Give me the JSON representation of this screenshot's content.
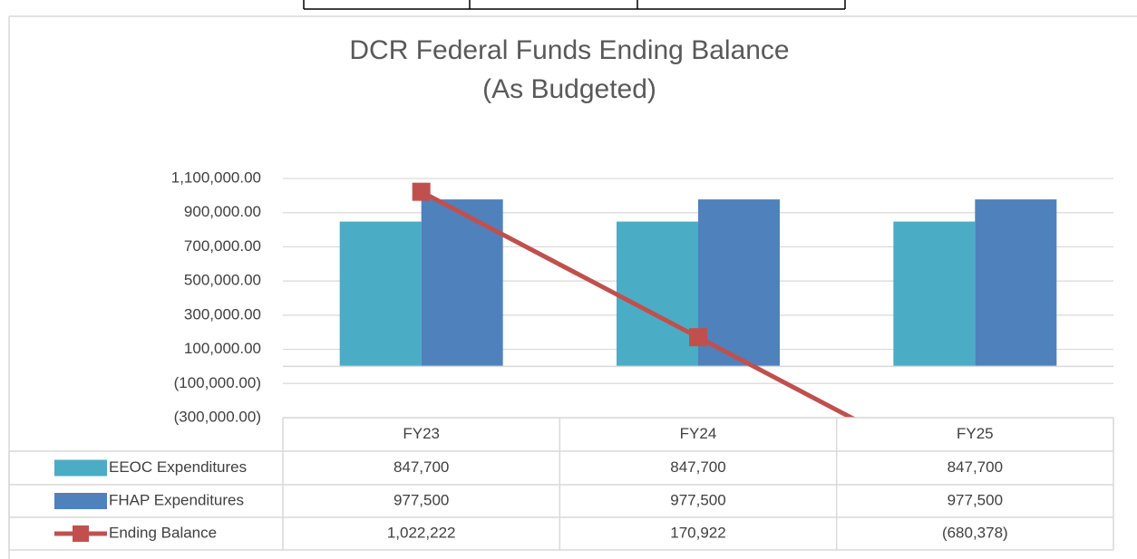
{
  "chart_data": {
    "type": "bar",
    "title": [
      "DCR Federal Funds Ending Balance",
      "(As Budgeted)"
    ],
    "categories": [
      "FY23",
      "FY24",
      "FY25"
    ],
    "series": [
      {
        "name": "EEOC Expenditures",
        "color": "#4bacc6",
        "type": "bar",
        "values": [
          847700,
          847700,
          847700
        ],
        "value_labels": [
          "847,700",
          "847,700",
          "847,700"
        ]
      },
      {
        "name": "FHAP Expenditures",
        "color": "#4f81bd",
        "type": "bar",
        "values": [
          977500,
          977500,
          977500
        ],
        "value_labels": [
          "977,500",
          "977,500",
          "977,500"
        ]
      },
      {
        "name": "Ending Balance",
        "color": "#c0504d",
        "type": "line",
        "values": [
          1022222,
          170922,
          -680378
        ],
        "value_labels": [
          "1,022,222",
          "170,922",
          "(680,378)"
        ]
      }
    ],
    "ylim": [
      -300000,
      1100000
    ],
    "yticks": [
      {
        "value": -300000,
        "label": "(300,000.00)"
      },
      {
        "value": -100000,
        "label": "(100,000.00)"
      },
      {
        "value": 100000,
        "label": "100,000.00"
      },
      {
        "value": 300000,
        "label": "300,000.00"
      },
      {
        "value": 500000,
        "label": "500,000.00"
      },
      {
        "value": 700000,
        "label": "700,000.00"
      },
      {
        "value": 900000,
        "label": "900,000.00"
      },
      {
        "value": 1100000,
        "label": "1,100,000.00"
      }
    ],
    "grid": true
  }
}
